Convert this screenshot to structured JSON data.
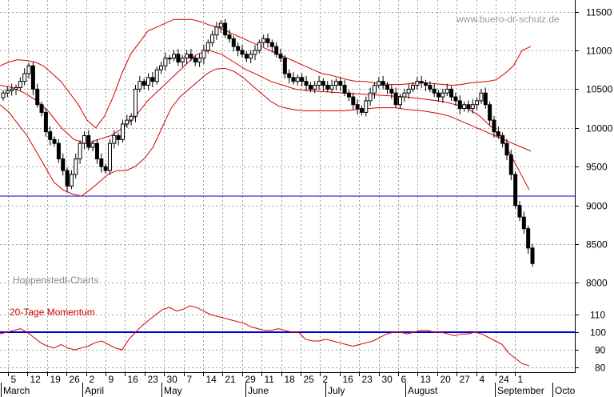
{
  "watermark": "www.buero-dr-schulz.de",
  "source_label": "Hoppenstedt-Charts",
  "momentum_label": "20-Tage Momentum",
  "colors": {
    "bollinger": "#d40000",
    "momentum": "#d40000",
    "reference_line": "#0000cc",
    "candle_up": "#ffffff",
    "candle_down": "#000000",
    "grid": "#a0a0a0"
  },
  "chart_data": [
    {
      "type": "candlestick",
      "title": "",
      "y_tick_labels": [
        "8000",
        "8500",
        "9000",
        "9500",
        "10000",
        "10500",
        "11000",
        "11500"
      ],
      "ylim": [
        7850,
        11650
      ],
      "grid": true,
      "horizontal_line": 9120,
      "series": [
        {
          "kind": "ohlc",
          "close": [
            10450,
            10480,
            10500,
            10520,
            10600,
            10700,
            10800,
            10500,
            10300,
            10200,
            9950,
            9850,
            9800,
            9600,
            9450,
            9250,
            9400,
            9600,
            9800,
            9900,
            9750,
            9800,
            9600,
            9500,
            9450,
            9800,
            9900,
            9850,
            10050,
            10100,
            10150,
            10500,
            10600,
            10550,
            10650,
            10600,
            10750,
            10800,
            10900,
            10900,
            10950,
            10850,
            10900,
            10950,
            10900,
            10850,
            10900,
            11000,
            11100,
            11200,
            11300,
            11350,
            11200,
            11150,
            11050,
            11000,
            10950,
            10900,
            10950,
            11000,
            11100,
            11150,
            11100,
            11050,
            10950,
            10900,
            10700,
            10650,
            10600,
            10650,
            10600,
            10550,
            10500,
            10550,
            10600,
            10550,
            10500,
            10550,
            10600,
            10550,
            10450,
            10400,
            10300,
            10250,
            10200,
            10350,
            10450,
            10550,
            10600,
            10550,
            10500,
            10450,
            10300,
            10400,
            10450,
            10500,
            10550,
            10600,
            10580,
            10550,
            10500,
            10450,
            10400,
            10450,
            10500,
            10400,
            10350,
            10250,
            10300,
            10250,
            10300,
            10350,
            10450,
            10300,
            10100,
            9950,
            9900,
            9800,
            9650,
            9400,
            9000,
            8850,
            8700,
            8450,
            8250
          ]
        },
        {
          "kind": "bollinger_upper",
          "values": [
            10800,
            10850,
            10880,
            10870,
            10850,
            10800,
            10700,
            10600,
            10450,
            10300,
            10100,
            10000,
            10150,
            10400,
            10700,
            10950,
            11100,
            11250,
            11300,
            11350,
            11400,
            11400,
            11400,
            11370,
            11330,
            11300,
            11250,
            11200,
            11150,
            11100,
            11050,
            11000,
            10950,
            10900,
            10850,
            10800,
            10750,
            10700,
            10680,
            10650,
            10620,
            10600,
            10600,
            10580,
            10570,
            10560,
            10560,
            10570,
            10580,
            10580,
            10570,
            10560,
            10550,
            10560,
            10580,
            10590,
            10600,
            10620,
            10700,
            10800,
            11000,
            11050
          ]
        },
        {
          "kind": "bollinger_lower",
          "values": [
            10300,
            10200,
            10050,
            9900,
            9700,
            9500,
            9300,
            9200,
            9150,
            9120,
            9200,
            9300,
            9400,
            9450,
            9450,
            9500,
            9600,
            9750,
            10000,
            10250,
            10400,
            10500,
            10600,
            10700,
            10760,
            10770,
            10730,
            10650,
            10550,
            10450,
            10350,
            10280,
            10250,
            10230,
            10220,
            10220,
            10220,
            10220,
            10220,
            10230,
            10240,
            10250,
            10260,
            10260,
            10260,
            10240,
            10230,
            10220,
            10200,
            10180,
            10150,
            10100,
            10050,
            10000,
            9950,
            9900,
            9850,
            9800,
            9750,
            9700
          ]
        },
        {
          "kind": "bollinger_middle",
          "values": [
            10550,
            10520,
            10450,
            10350,
            10200,
            10000,
            9850,
            9800,
            9850,
            9900,
            10000,
            10150,
            10350,
            10500,
            10650,
            10800,
            10950,
            11000,
            10950,
            10850,
            10750,
            10680,
            10600,
            10550,
            10500,
            10480,
            10470,
            10460,
            10450,
            10440,
            10430,
            10420,
            10410,
            10400,
            10380,
            10360,
            10340,
            10300,
            10250,
            10150,
            10000,
            9800,
            9500,
            9200
          ]
        }
      ]
    },
    {
      "type": "line",
      "title": "20-Tage Momentum",
      "y_tick_labels": [
        "80",
        "90",
        "100",
        "110"
      ],
      "ylim": [
        78,
        118
      ],
      "horizontal_line": 100,
      "series": [
        {
          "name": "20-Tage Momentum",
          "values": [
            99,
            100,
            101,
            102,
            100,
            97,
            94,
            92,
            91,
            93,
            91,
            90,
            91,
            92,
            94,
            95,
            93,
            91,
            90,
            96,
            100,
            104,
            107,
            110,
            113,
            114,
            112,
            113,
            115,
            114,
            112,
            110,
            109,
            108,
            107,
            106,
            105,
            103,
            102,
            101,
            101,
            102,
            101,
            100,
            100,
            96,
            95,
            95,
            96,
            95,
            94,
            93,
            92,
            93,
            94,
            95,
            97,
            99,
            100,
            100,
            99,
            100,
            101,
            101,
            100,
            100,
            99,
            98,
            99,
            99,
            100,
            99,
            97,
            95,
            93,
            88,
            85,
            82,
            81
          ]
        }
      ]
    }
  ],
  "x_axis": {
    "day_labels": [
      "5",
      "12",
      "19",
      "26",
      "2",
      "9",
      "16",
      "23",
      "30",
      "7",
      "14",
      "21",
      "29",
      "11",
      "18",
      "25",
      "2",
      "16",
      "23",
      "30",
      "6",
      "13",
      "20",
      "27",
      "4",
      "24",
      "1"
    ],
    "month_labels": [
      "March",
      "April",
      "May",
      "June",
      "July",
      "August",
      "September",
      "Octo"
    ]
  }
}
